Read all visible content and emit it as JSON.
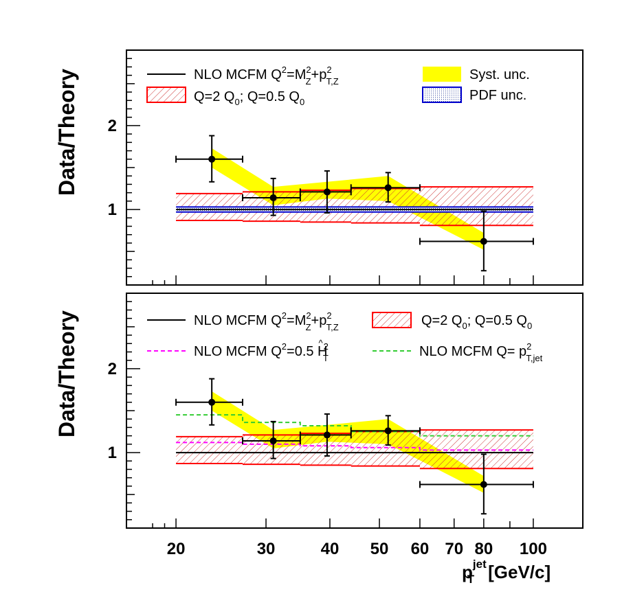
{
  "chart_data": [
    {
      "type": "line",
      "panel": "top",
      "title": "",
      "ylabel": "Data/Theory",
      "xlabel": "",
      "xscale": "log",
      "xlim": [
        16,
        125
      ],
      "ylim": [
        0.1,
        2.9
      ],
      "yticks": [
        {
          "v": 1,
          "label": "1"
        },
        {
          "v": 2,
          "label": "2"
        }
      ],
      "bins": [
        20,
        27,
        35,
        44,
        60,
        100
      ],
      "data": {
        "x": [
          23.5,
          31,
          39.5,
          52,
          80
        ],
        "y": [
          1.6,
          1.14,
          1.21,
          1.26,
          0.62
        ],
        "xlo": [
          20,
          27,
          35,
          44,
          60
        ],
        "xhi": [
          27,
          35,
          44,
          60,
          100
        ],
        "ylo": [
          1.33,
          0.93,
          0.96,
          1.09,
          0.27
        ],
        "yhi": [
          1.88,
          1.37,
          1.46,
          1.44,
          0.98
        ]
      },
      "syst_band": {
        "lo": [
          1.5,
          1.05,
          1.13,
          1.1,
          0.52
        ],
        "hi": [
          1.73,
          1.27,
          1.33,
          1.4,
          0.72
        ]
      },
      "scale_band": {
        "lo": [
          0.87,
          0.86,
          0.85,
          0.84,
          0.81
        ],
        "hi": [
          1.19,
          1.21,
          1.23,
          1.25,
          1.27
        ]
      },
      "pdf_band": {
        "lo": [
          0.97,
          0.97,
          0.97,
          0.97,
          0.97
        ],
        "hi": [
          1.03,
          1.03,
          1.03,
          1.03,
          1.03
        ]
      },
      "legend": {
        "nlo_main": "NLO MCFM Q",
        "nlo_sup1": "2",
        "nlo_eq": "=M",
        "nlo_sup2": "2",
        "nlo_sub1": "Z",
        "nlo_plus": "+p",
        "nlo_sup3": "2",
        "nlo_sub2": "T,Z",
        "scale_a": "Q=2 Q",
        "scale_sub1": "0",
        "scale_b": "; Q=0.5 Q",
        "scale_sub2": "0",
        "syst": "Syst. unc.",
        "pdf": "PDF unc."
      }
    },
    {
      "type": "line",
      "panel": "bottom",
      "title": "",
      "ylabel": "Data/Theory",
      "xlabel": "p_T^jet [GeV/c]",
      "xscale": "log",
      "xlim": [
        16,
        125
      ],
      "ylim": [
        0.1,
        2.9
      ],
      "yticks": [
        {
          "v": 1,
          "label": "1"
        },
        {
          "v": 2,
          "label": "2"
        }
      ],
      "xticks": [
        {
          "v": 20,
          "label": "20"
        },
        {
          "v": 30,
          "label": "30"
        },
        {
          "v": 40,
          "label": "40"
        },
        {
          "v": 50,
          "label": "50"
        },
        {
          "v": 60,
          "label": "60"
        },
        {
          "v": 70,
          "label": "70"
        },
        {
          "v": 80,
          "label": "80"
        },
        {
          "v": 100,
          "label": "100"
        }
      ],
      "bins": [
        20,
        27,
        35,
        44,
        60,
        100
      ],
      "data": {
        "x": [
          23.5,
          31,
          39.5,
          52,
          80
        ],
        "y": [
          1.6,
          1.14,
          1.21,
          1.26,
          0.62
        ],
        "xlo": [
          20,
          27,
          35,
          44,
          60
        ],
        "xhi": [
          27,
          35,
          44,
          60,
          100
        ],
        "ylo": [
          1.33,
          0.93,
          0.96,
          1.09,
          0.27
        ],
        "yhi": [
          1.88,
          1.37,
          1.46,
          1.44,
          0.98
        ]
      },
      "syst_band": {
        "lo": [
          1.5,
          1.05,
          1.13,
          1.1,
          0.52
        ],
        "hi": [
          1.73,
          1.27,
          1.33,
          1.4,
          0.72
        ]
      },
      "scale_band": {
        "lo": [
          0.87,
          0.86,
          0.85,
          0.84,
          0.81
        ],
        "hi": [
          1.19,
          1.21,
          1.23,
          1.25,
          1.27
        ]
      },
      "ht_ratio": [
        1.12,
        1.1,
        1.08,
        1.06,
        1.03
      ],
      "ptjet_ratio": [
        1.45,
        1.36,
        1.32,
        1.25,
        1.2
      ],
      "legend": {
        "nlo_main": "NLO MCFM Q",
        "nlo_sup1": "2",
        "nlo_eq": "=M",
        "nlo_sup2": "2",
        "nlo_sub1": "Z",
        "nlo_plus": "+p",
        "nlo_sup3": "2",
        "nlo_sub2": "T,Z",
        "scale_a": "Q=2 Q",
        "scale_sub1": "0",
        "scale_b": "; Q=0.5 Q",
        "scale_sub2": "0",
        "ht_main": "NLO MCFM Q",
        "ht_sup": "2",
        "ht_eq": "=0.5 H",
        "ht_hat": "^",
        "ht_sup2": "2",
        "ht_sub": "T",
        "ptjet_main": "NLO MCFM Q= p",
        "ptjet_sup": "2",
        "ptjet_sub": "T,jet"
      },
      "xaxis_title": {
        "p": "p",
        "sup": "jet",
        "sub": "T",
        "unit": "[GeV/c]"
      }
    }
  ],
  "colors": {
    "syst": "#ffff00",
    "scale": "#ff0000",
    "pdf": "#0000cc",
    "pdf_fill": "#b8c8e8",
    "nlo": "#000000",
    "ht": "#ff00ff",
    "ptjet": "#33cc33"
  }
}
